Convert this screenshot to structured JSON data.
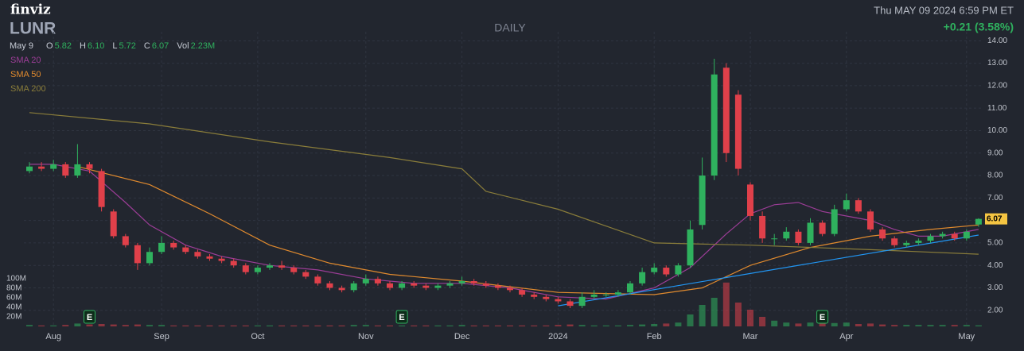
{
  "brand": "finviz",
  "chart_data": {
    "type": "candlestick",
    "ticker": "LUNR",
    "period": "DAILY",
    "timestamp": "Thu MAY 09 2024 6:59 PM ET",
    "change": "+0.21 (3.58%)",
    "quote": {
      "date": "May 9",
      "items": [
        {
          "label": "O",
          "value": "5.82"
        },
        {
          "label": "H",
          "value": "6.10"
        },
        {
          "label": "L",
          "value": "5.72"
        },
        {
          "label": "C",
          "value": "6.07"
        },
        {
          "label": "Vol",
          "value": "2.23M"
        }
      ]
    },
    "categories": [
      null,
      null,
      "Aug",
      null,
      null,
      null,
      null,
      null,
      null,
      null,
      null,
      "Sep",
      null,
      null,
      null,
      null,
      null,
      null,
      null,
      "Oct",
      null,
      null,
      null,
      null,
      null,
      null,
      null,
      null,
      "Nov",
      null,
      null,
      null,
      null,
      null,
      null,
      null,
      "Dec",
      null,
      null,
      null,
      null,
      null,
      null,
      null,
      "2024",
      null,
      null,
      null,
      null,
      null,
      null,
      null,
      "Feb",
      null,
      null,
      null,
      null,
      null,
      null,
      null,
      "Mar",
      null,
      null,
      null,
      null,
      null,
      null,
      null,
      "Apr",
      null,
      null,
      null,
      null,
      null,
      null,
      null,
      null,
      null,
      "May",
      null
    ],
    "open": [
      8.2,
      8.4,
      8.3,
      8.5,
      8.0,
      8.5,
      8.2,
      6.4,
      5.3,
      4.9,
      4.1,
      4.6,
      5.0,
      4.8,
      4.6,
      4.4,
      4.3,
      4.2,
      4.0,
      3.7,
      3.9,
      4.0,
      3.9,
      3.7,
      3.5,
      3.2,
      3.0,
      2.9,
      3.2,
      3.4,
      3.2,
      3.0,
      3.2,
      3.1,
      3.0,
      3.1,
      3.2,
      3.3,
      3.2,
      3.1,
      3.0,
      2.9,
      2.7,
      2.6,
      2.5,
      2.4,
      2.2,
      2.6,
      2.7,
      2.7,
      2.8,
      3.2,
      3.7,
      3.9,
      3.6,
      4.0,
      5.8,
      8.0,
      12.8,
      11.6,
      7.6,
      6.2,
      5.2,
      5.2,
      5.5,
      5.0,
      5.9,
      5.4,
      6.5,
      6.9,
      6.4,
      5.6,
      5.2,
      4.9,
      5.0,
      5.1,
      5.3,
      5.4,
      5.2,
      5.82
    ],
    "high": [
      8.6,
      8.6,
      8.7,
      8.6,
      9.4,
      8.6,
      8.3,
      6.5,
      5.4,
      5.0,
      4.8,
      5.3,
      5.1,
      4.9,
      4.7,
      4.5,
      4.4,
      4.3,
      4.1,
      4.0,
      4.1,
      4.2,
      4.0,
      3.8,
      3.6,
      3.3,
      3.1,
      3.3,
      3.6,
      3.5,
      3.3,
      3.3,
      3.3,
      3.2,
      3.2,
      3.3,
      3.5,
      3.4,
      3.3,
      3.2,
      3.1,
      3.0,
      2.8,
      2.7,
      2.6,
      2.5,
      2.8,
      2.9,
      2.8,
      2.9,
      3.3,
      3.9,
      4.1,
      4.0,
      4.1,
      6.0,
      8.8,
      13.2,
      13.0,
      11.8,
      7.7,
      6.4,
      5.4,
      5.7,
      5.6,
      6.1,
      6.0,
      6.7,
      7.2,
      7.0,
      6.5,
      5.7,
      5.3,
      5.1,
      5.2,
      5.4,
      5.5,
      5.5,
      5.6,
      6.1
    ],
    "low": [
      8.1,
      8.2,
      8.2,
      7.9,
      7.9,
      8.1,
      6.4,
      5.2,
      4.8,
      3.8,
      4.0,
      4.5,
      4.7,
      4.5,
      4.3,
      4.2,
      4.1,
      3.9,
      3.6,
      3.6,
      3.8,
      3.8,
      3.6,
      3.4,
      3.1,
      2.9,
      2.8,
      2.8,
      3.1,
      3.1,
      2.9,
      2.9,
      3.0,
      2.9,
      2.9,
      3.0,
      3.1,
      3.1,
      3.0,
      2.9,
      2.8,
      2.6,
      2.5,
      2.4,
      2.3,
      2.1,
      2.1,
      2.5,
      2.6,
      2.6,
      2.7,
      3.1,
      3.6,
      3.5,
      3.5,
      3.9,
      5.6,
      7.8,
      8.6,
      8.0,
      6.0,
      5.0,
      4.9,
      5.1,
      4.9,
      4.9,
      5.3,
      5.3,
      6.4,
      6.3,
      5.5,
      5.1,
      4.8,
      4.8,
      4.9,
      5.0,
      5.2,
      5.1,
      5.1,
      5.72
    ],
    "close": [
      8.4,
      8.3,
      8.5,
      8.0,
      8.5,
      8.3,
      6.6,
      5.3,
      4.9,
      4.1,
      4.6,
      5.0,
      4.8,
      4.6,
      4.4,
      4.3,
      4.2,
      4.0,
      3.7,
      3.9,
      4.0,
      3.9,
      3.7,
      3.5,
      3.2,
      3.0,
      2.9,
      3.2,
      3.4,
      3.2,
      3.0,
      3.2,
      3.1,
      3.0,
      3.1,
      3.2,
      3.3,
      3.2,
      3.1,
      3.0,
      2.9,
      2.7,
      2.6,
      2.5,
      2.4,
      2.2,
      2.6,
      2.7,
      2.7,
      2.8,
      3.2,
      3.7,
      3.9,
      3.6,
      4.0,
      5.6,
      8.0,
      12.5,
      9.0,
      8.3,
      6.2,
      5.2,
      5.2,
      5.5,
      5.0,
      5.9,
      5.4,
      6.5,
      6.9,
      6.4,
      5.6,
      5.2,
      4.9,
      5.0,
      5.1,
      5.3,
      5.4,
      5.2,
      5.5,
      6.07
    ],
    "volume": [
      3,
      2,
      2,
      3,
      6,
      4,
      5,
      4,
      3,
      4,
      3,
      3,
      2,
      2,
      2,
      2,
      2,
      2,
      2,
      2,
      2,
      2,
      2,
      2,
      2,
      2,
      2,
      3,
      3,
      2,
      2,
      2,
      2,
      2,
      2,
      2,
      3,
      2,
      2,
      2,
      2,
      2,
      2,
      2,
      3,
      4,
      3,
      2,
      2,
      2,
      3,
      4,
      5,
      6,
      8,
      25,
      45,
      60,
      92,
      50,
      35,
      20,
      12,
      8,
      6,
      8,
      6,
      7,
      8,
      5,
      6,
      4,
      3,
      3,
      3,
      3,
      3,
      3,
      3,
      2.23
    ],
    "up_color": "#2fb15e",
    "down_color": "#e0404a",
    "ylim": [
      1.25,
      14.4
    ],
    "yticks": [
      {
        "value": 2,
        "label": "2.00"
      },
      {
        "value": 3,
        "label": "3.00"
      },
      {
        "value": 4,
        "label": "4.00"
      },
      {
        "value": 5,
        "label": "5.00"
      },
      {
        "value": 6,
        "label": "6.00"
      },
      {
        "value": 7,
        "label": "7.00"
      },
      {
        "value": 8,
        "label": "8.00"
      },
      {
        "value": 9,
        "label": "9.00"
      },
      {
        "value": 10,
        "label": "10.00"
      },
      {
        "value": 11,
        "label": "11.00"
      },
      {
        "value": 12,
        "label": "12.00"
      },
      {
        "value": 13,
        "label": "13.00"
      },
      {
        "value": 14,
        "label": "14.00"
      }
    ],
    "vlim": [
      0,
      100
    ],
    "vticks": [
      {
        "value": 20,
        "label": "20M"
      },
      {
        "value": 40,
        "label": "40M"
      },
      {
        "value": 60,
        "label": "60M"
      },
      {
        "value": 80,
        "label": "80M"
      },
      {
        "value": 100,
        "label": "100M"
      }
    ],
    "grid": true,
    "series": [
      {
        "name": "SMA 20",
        "color": "#9b3d96",
        "x": [
          0,
          2,
          5,
          8,
          10,
          13,
          16,
          20,
          24,
          28,
          32,
          36,
          40,
          44,
          48,
          52,
          55,
          58,
          60,
          62,
          64,
          66,
          68,
          70,
          72,
          74,
          76,
          79
        ],
        "values": [
          8.5,
          8.5,
          8.2,
          6.8,
          5.8,
          4.9,
          4.4,
          4.0,
          3.8,
          3.4,
          3.2,
          3.2,
          3.0,
          2.6,
          2.5,
          3.0,
          3.9,
          5.4,
          6.3,
          6.7,
          6.8,
          6.4,
          6.2,
          6.0,
          5.6,
          5.3,
          5.3,
          5.6
        ]
      },
      {
        "name": "SMA 50",
        "color": "#e08a2e",
        "x": [
          4,
          10,
          15,
          20,
          25,
          30,
          36,
          44,
          52,
          56,
          60,
          65,
          70,
          75,
          79
        ],
        "values": [
          8.4,
          7.6,
          6.3,
          4.9,
          4.1,
          3.6,
          3.3,
          2.8,
          2.7,
          3.0,
          4.0,
          4.8,
          5.3,
          5.6,
          5.8
        ]
      },
      {
        "name": "SMA 200",
        "color": "#8a7d3a",
        "x": [
          0,
          10,
          20,
          30,
          36,
          38,
          44,
          52,
          60,
          70,
          79
        ],
        "values": [
          10.8,
          10.3,
          9.5,
          8.8,
          8.3,
          7.3,
          6.5,
          5.0,
          4.9,
          4.7,
          4.5
        ]
      }
    ],
    "trendline": {
      "color": "#2196f3",
      "x": [
        44,
        79
      ],
      "values": [
        2.2,
        5.35
      ]
    },
    "earnings": {
      "label": "E",
      "x": [
        5,
        31,
        66
      ]
    }
  }
}
